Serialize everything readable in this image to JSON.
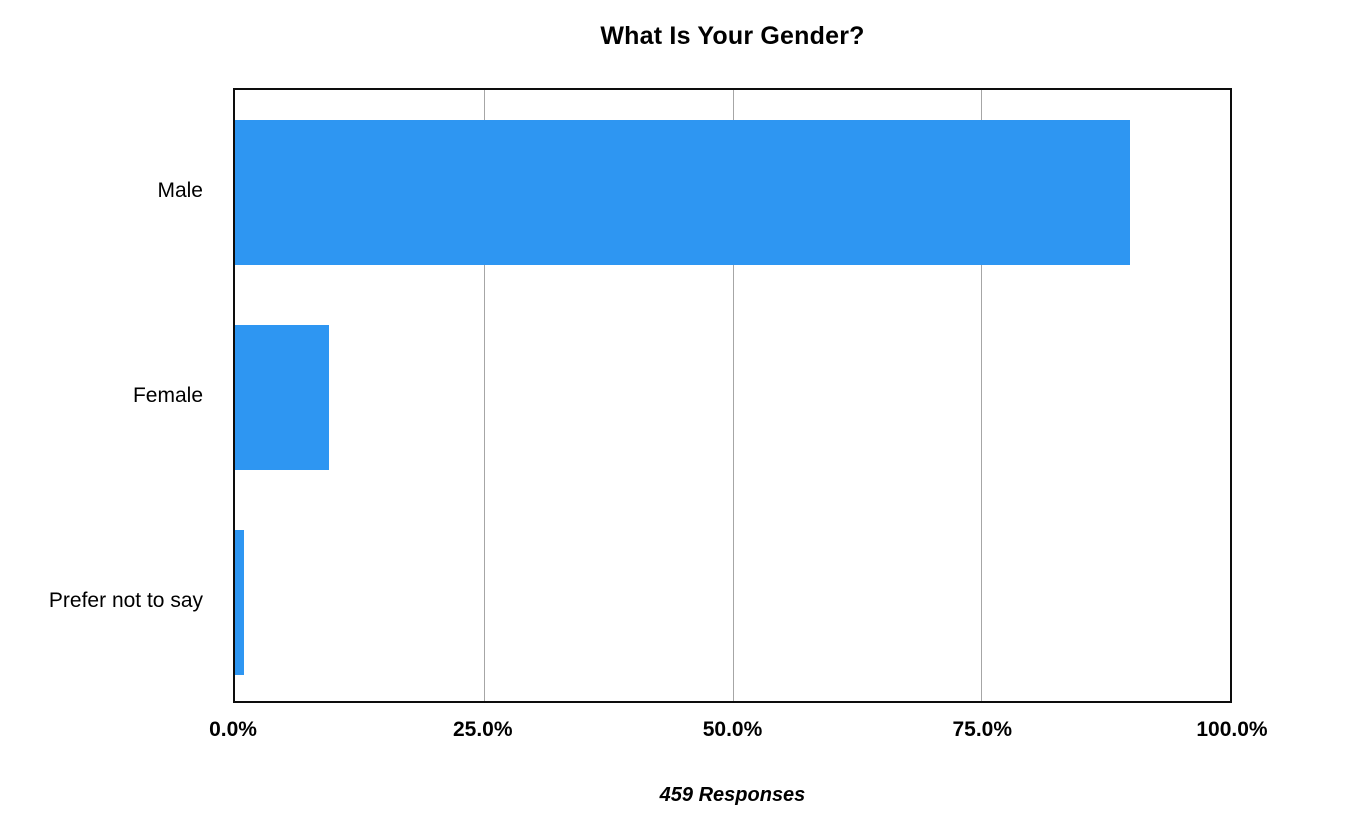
{
  "chart_data": {
    "type": "bar",
    "orientation": "horizontal",
    "title": "What Is Your Gender?",
    "categories": [
      "Male",
      "Female",
      "Prefer not to say"
    ],
    "values": [
      89.9,
      9.4,
      0.9
    ],
    "value_unit": "%",
    "xlabel": "",
    "ylabel": "",
    "xlim": [
      0,
      100
    ],
    "x_tick_labels": [
      "0.0%",
      "25.0%",
      "50.0%",
      "75.0%",
      "100.0%"
    ],
    "x_tick_values": [
      0,
      25,
      50,
      75,
      100
    ],
    "grid": true,
    "legend": false,
    "footnote": "459 Responses",
    "colors": {
      "bar": "#2e96f2",
      "gridline": "#a6a6a6",
      "plot_border": "#0d0d0d",
      "text": "#000000",
      "background": "#ffffff"
    }
  }
}
